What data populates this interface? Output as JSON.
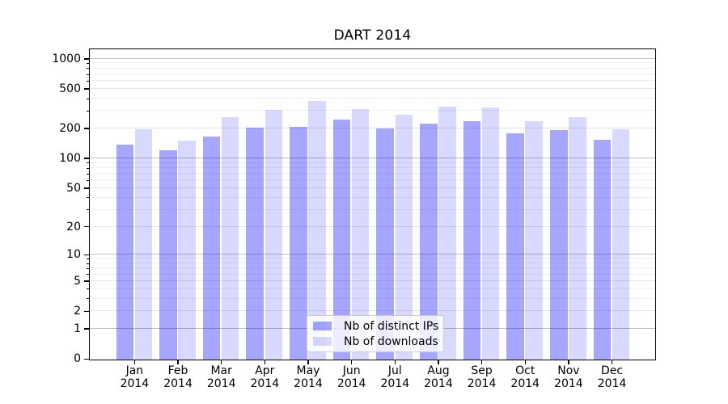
{
  "title": "DART 2014",
  "chart_data": {
    "type": "bar",
    "title": "DART 2014",
    "y_scale": "log1p (position proportional to log10(1+y), 0 at baseline)",
    "grid": true,
    "legend_position": "lower center",
    "categories": [
      "Jan",
      "Feb",
      "Mar",
      "Apr",
      "May",
      "Jun",
      "Jul",
      "Aug",
      "Sep",
      "Oct",
      "Nov",
      "Dec"
    ],
    "category_year": "2014",
    "series": [
      {
        "name": "Nb of distinct IPs",
        "color": "rgba(0,0,255,0.35)",
        "values": [
          140,
          122,
          168,
          208,
          212,
          250,
          203,
          228,
          240,
          180,
          194,
          156
        ]
      },
      {
        "name": "Nb of downloads",
        "color": "rgba(0,0,255,0.15)",
        "values": [
          198,
          154,
          262,
          310,
          385,
          318,
          277,
          338,
          332,
          240,
          265,
          201
        ]
      }
    ],
    "y_ticks_labeled": [
      0,
      1,
      2,
      5,
      10,
      20,
      50,
      100,
      200,
      500,
      1000
    ],
    "y_ticks_major": [
      1,
      10,
      100,
      1000
    ],
    "y_ticks_minor_unlabeled": [
      3,
      4,
      6,
      7,
      8,
      9,
      30,
      40,
      60,
      70,
      80,
      90,
      300,
      400,
      600,
      700,
      800,
      900
    ],
    "ylim": [
      0,
      1260
    ],
    "xlabel": "",
    "ylabel": ""
  },
  "colors": {
    "bar_distinct_ips": "rgba(0,0,255,0.35)",
    "bar_downloads": "rgba(0,0,255,0.15)",
    "grid_major": "#c0c0c0",
    "grid_minor": "#eeeeee",
    "axis": "#000000",
    "legend_border": "#cccccc"
  }
}
